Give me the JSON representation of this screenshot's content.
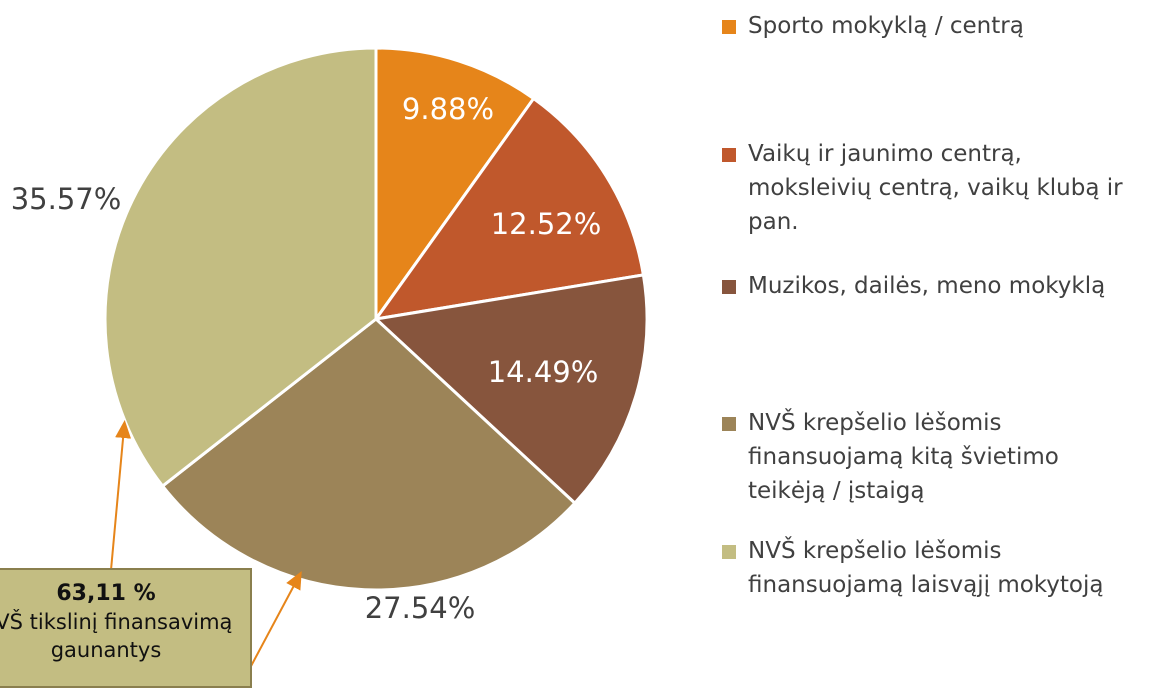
{
  "chart_data": {
    "type": "pie",
    "categories": [
      "Sporto mokyklą / centrą",
      "Vaikų ir jaunimo centrą, moksleivių centrą, vaikų klubą ir pan.",
      "Muzikos, dailės, meno mokyklą",
      "NVŠ krepšelio lėšomis finansuojamą kitą švietimo teikėją / įstaigą",
      "NVŠ krepšelio lėšomis finansuojamą laisvąjį mokytoją"
    ],
    "values": [
      9.88,
      12.52,
      14.49,
      27.54,
      35.57
    ],
    "value_labels": [
      "9.88%",
      "12.52%",
      "14.49%",
      "27.54%",
      "35.57%"
    ],
    "colors": [
      "#E6851A",
      "#C0582C",
      "#87553D",
      "#9C8458",
      "#C3BD82"
    ],
    "annotation": {
      "value": "63,11 %",
      "text": "NVŠ tikslinį finansavimą gaunantys"
    }
  }
}
